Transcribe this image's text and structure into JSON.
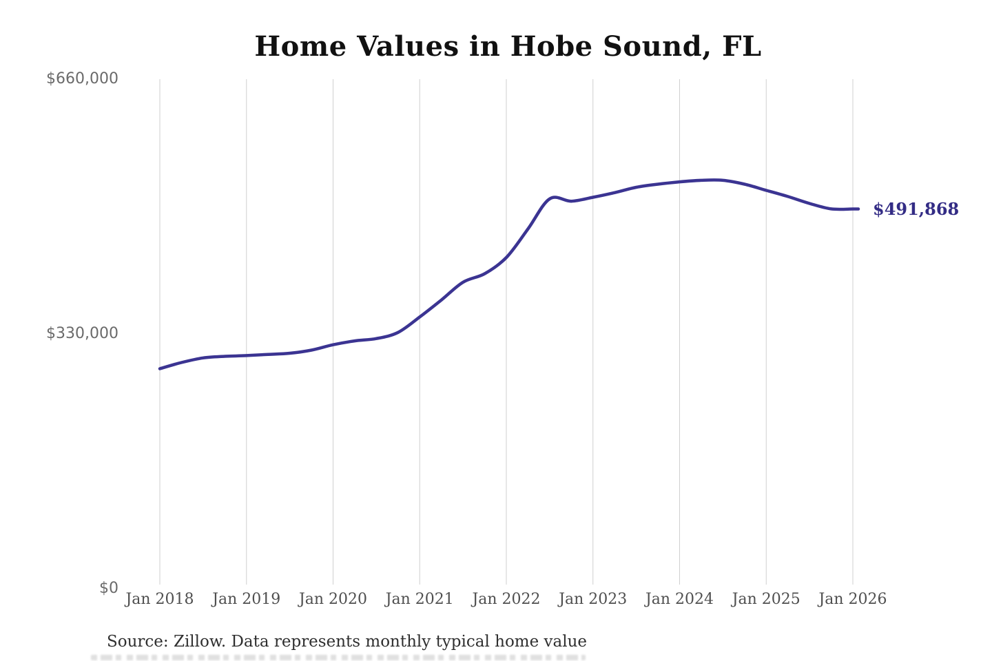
{
  "page": {
    "title": "Home Values in Hobe Sound, FL",
    "source_note": "Source: Zillow. Data represents monthly typical home value"
  },
  "latest": {
    "label": "$491,868",
    "value": 491868
  },
  "colors": {
    "line": "#3b3492",
    "latest_label": "#332c85",
    "grid": "#cfcfcf",
    "title": "#111111",
    "x_tick": "#4f4f4f",
    "y_tick": "#6a6a6a",
    "source": "#2f2f2f",
    "background": "#ffffff"
  },
  "chart_data": {
    "type": "line",
    "title": "Home Values in Hobe Sound, FL",
    "series_name": "Monthly typical home value",
    "unit": "USD",
    "ylim": [
      0,
      660000
    ],
    "grid": "vertical-only",
    "legend": "none",
    "y_ticks": [
      {
        "label": "$660,000",
        "value": 660000
      },
      {
        "label": "$330,000",
        "value": 330000
      },
      {
        "label": "$0",
        "value": 0
      }
    ],
    "x_ticks": [
      {
        "label": "Jan 2018",
        "year": 2018
      },
      {
        "label": "Jan 2019",
        "year": 2019
      },
      {
        "label": "Jan 2020",
        "year": 2020
      },
      {
        "label": "Jan 2021",
        "year": 2021
      },
      {
        "label": "Jan 2022",
        "year": 2022
      },
      {
        "label": "Jan 2023",
        "year": 2023
      },
      {
        "label": "Jan 2024",
        "year": 2024
      },
      {
        "label": "Jan 2025",
        "year": 2025
      },
      {
        "label": "Jan 2026",
        "year": 2026
      }
    ],
    "end_annotation": "$491,868",
    "points": [
      [
        2018.0,
        285000
      ],
      [
        2018.25,
        293000
      ],
      [
        2018.5,
        299000
      ],
      [
        2018.75,
        301000
      ],
      [
        2019.0,
        302000
      ],
      [
        2019.25,
        303500
      ],
      [
        2019.5,
        305000
      ],
      [
        2019.75,
        309000
      ],
      [
        2020.0,
        316000
      ],
      [
        2020.25,
        321000
      ],
      [
        2020.5,
        324000
      ],
      [
        2020.75,
        332000
      ],
      [
        2021.0,
        352000
      ],
      [
        2021.25,
        374000
      ],
      [
        2021.5,
        397000
      ],
      [
        2021.75,
        408000
      ],
      [
        2022.0,
        429000
      ],
      [
        2022.25,
        466000
      ],
      [
        2022.5,
        505000
      ],
      [
        2022.75,
        502000
      ],
      [
        2023.0,
        507000
      ],
      [
        2023.25,
        513000
      ],
      [
        2023.5,
        520000
      ],
      [
        2023.75,
        524000
      ],
      [
        2024.0,
        527000
      ],
      [
        2024.25,
        529000
      ],
      [
        2024.5,
        529000
      ],
      [
        2024.75,
        524000
      ],
      [
        2025.0,
        516000
      ],
      [
        2025.25,
        508000
      ],
      [
        2025.5,
        499000
      ],
      [
        2025.75,
        492000
      ],
      [
        2026.0,
        491868
      ]
    ]
  }
}
